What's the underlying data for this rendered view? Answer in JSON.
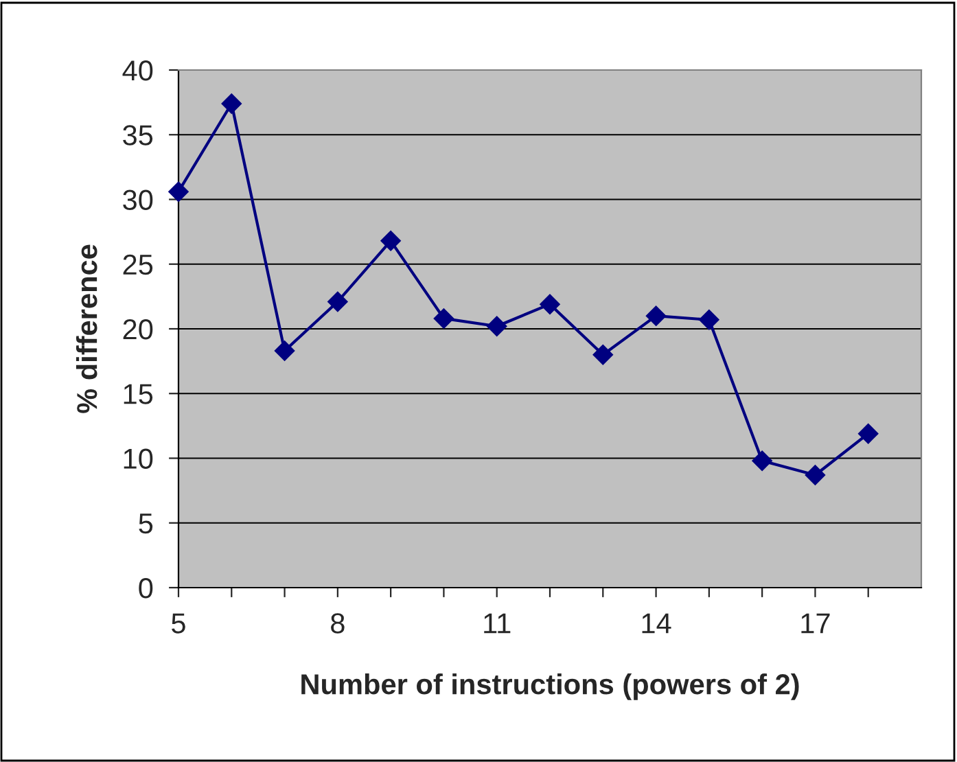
{
  "chart_data": {
    "type": "line",
    "xlabel": "Number of instructions (powers of 2)",
    "ylabel": "% difference",
    "x": [
      5,
      6,
      7,
      8,
      9,
      10,
      11,
      12,
      13,
      14,
      15,
      16,
      17,
      18
    ],
    "series": [
      {
        "color": "#000080",
        "values": [
          30.6,
          37.4,
          18.3,
          22.1,
          26.8,
          20.8,
          20.2,
          21.9,
          18.0,
          21.0,
          20.7,
          9.8,
          8.7,
          11.9
        ]
      }
    ],
    "xlim": [
      5,
      19
    ],
    "xticks": [
      5,
      {
        "value": 6,
        "label": null
      },
      {
        "value": 7,
        "label": null
      },
      8,
      {
        "value": 9,
        "label": null
      },
      {
        "value": 10,
        "label": null
      },
      11,
      {
        "value": 12,
        "label": null
      },
      {
        "value": 13,
        "label": null
      },
      14,
      {
        "value": 15,
        "label": null
      },
      {
        "value": 16,
        "label": null
      },
      17,
      {
        "value": 18,
        "label": null
      }
    ],
    "ylim": [
      0,
      40
    ],
    "yticks": [
      0,
      5,
      10,
      15,
      20,
      25,
      30,
      35,
      40
    ],
    "grid": "y",
    "marker": "diamond",
    "line_style": "solid",
    "legend": false
  }
}
